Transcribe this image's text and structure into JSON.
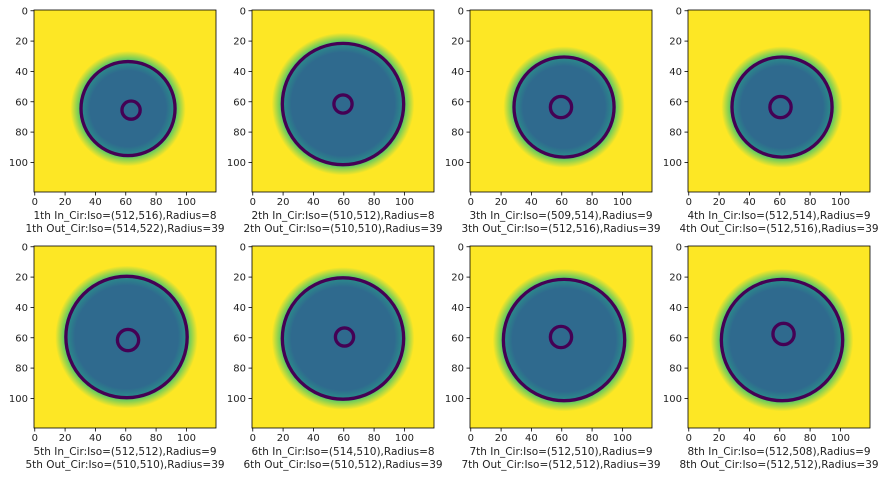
{
  "chart_data": {
    "type": "heatmap",
    "grid": "off",
    "image_size": 120,
    "xlim": [
      0,
      120
    ],
    "ylim": [
      120,
      0
    ],
    "x_ticks": [
      0,
      20,
      40,
      60,
      80,
      100
    ],
    "y_ticks": [
      0,
      20,
      40,
      60,
      80,
      100
    ],
    "colors": {
      "background": "#fde725",
      "ring": "#440154",
      "interior": "#2f6a8e",
      "interior_edge": "#2a8b8a",
      "glow": "#5ec962"
    },
    "panels": [
      {
        "caption_line1": "1th In_Cir:Iso=(512,516),Radius=8",
        "caption_line2": "1th Out_Cir:Iso=(514,522),Radius=39",
        "in_center": [
          64,
          66
        ],
        "in_radius": 6,
        "out_center": [
          62,
          65
        ],
        "out_radius": 31
      },
      {
        "caption_line1": "2th In_Cir:Iso=(510,512),Radius=8",
        "caption_line2": "2th Out_Cir:Iso=(510,510),Radius=39",
        "in_center": [
          60,
          62
        ],
        "in_radius": 6,
        "out_center": [
          60,
          62
        ],
        "out_radius": 40
      },
      {
        "caption_line1": "3th In_Cir:Iso=(509,514),Radius=9",
        "caption_line2": "3th Out_Cir:Iso=(512,516),Radius=39",
        "in_center": [
          60,
          64
        ],
        "in_radius": 7,
        "out_center": [
          62,
          64
        ],
        "out_radius": 33
      },
      {
        "caption_line1": "4th In_Cir:Iso=(512,514),Radius=9",
        "caption_line2": "4th Out_Cir:Iso=(512,516),Radius=39",
        "in_center": [
          61,
          64
        ],
        "in_radius": 7,
        "out_center": [
          62,
          64
        ],
        "out_radius": 33
      },
      {
        "caption_line1": "5th In_Cir:Iso=(512,512),Radius=9",
        "caption_line2": "5th Out_Cir:Iso=(510,510),Radius=39",
        "in_center": [
          62,
          62
        ],
        "in_radius": 7,
        "out_center": [
          61,
          60
        ],
        "out_radius": 40
      },
      {
        "caption_line1": "6th In_Cir:Iso=(514,510),Radius=8",
        "caption_line2": "6th Out_Cir:Iso=(510,512),Radius=39",
        "in_center": [
          61,
          60
        ],
        "in_radius": 6,
        "out_center": [
          60,
          61
        ],
        "out_radius": 40
      },
      {
        "caption_line1": "7th In_Cir:Iso=(512,510),Radius=9",
        "caption_line2": "7th Out_Cir:Iso=(512,512),Radius=39",
        "in_center": [
          60,
          60
        ],
        "in_radius": 7,
        "out_center": [
          62,
          62
        ],
        "out_radius": 40
      },
      {
        "caption_line1": "8th In_Cir:Iso=(512,508),Radius=9",
        "caption_line2": "8th Out_Cir:Iso=(512,512),Radius=39",
        "in_center": [
          63,
          58
        ],
        "in_radius": 7,
        "out_center": [
          62,
          62
        ],
        "out_radius": 40
      }
    ]
  }
}
